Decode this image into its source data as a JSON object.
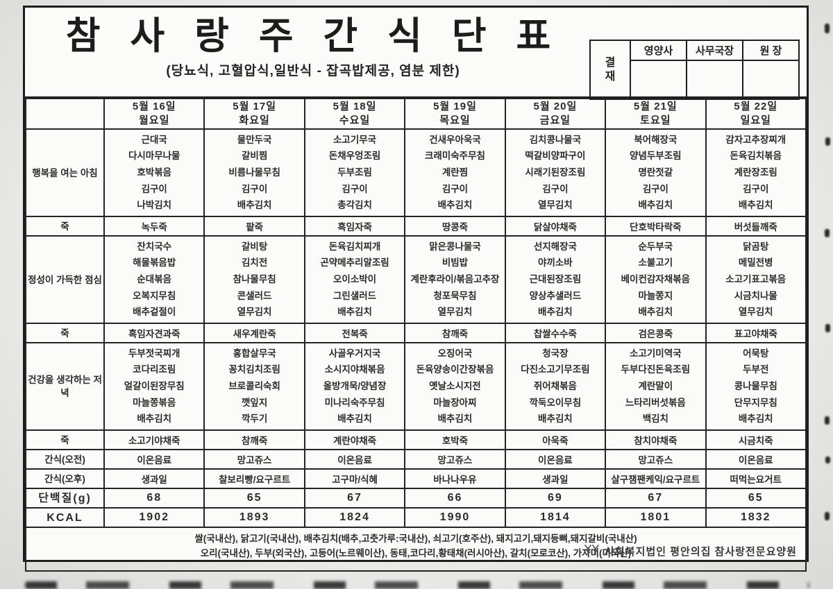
{
  "colors": {
    "ink": "#1e1e1e",
    "paper": "#fbfbf9",
    "scan_background": "#e3e3e1",
    "text": "#2b2b2b"
  },
  "header": {
    "title": "참 사 랑 주 간 식 단 표",
    "subtitle": "(당뇨식, 고혈압식,일반식 - 잡곡밥제공, 염분 제한)"
  },
  "approval": {
    "label": "결재",
    "roles": [
      "영양사",
      "사무국장",
      "원 장"
    ]
  },
  "days": [
    {
      "date": "5월 16일",
      "day": "월요일"
    },
    {
      "date": "5월 17일",
      "day": "화요일"
    },
    {
      "date": "5월 18일",
      "day": "수요일"
    },
    {
      "date": "5월 19일",
      "day": "목요일"
    },
    {
      "date": "5월 20일",
      "day": "금요일"
    },
    {
      "date": "5월 21일",
      "day": "토요일"
    },
    {
      "date": "5월 22일",
      "day": "일요일"
    }
  ],
  "menu": {
    "rows": [
      {
        "label": "행복을 여는 아침",
        "type": "meal",
        "cells": [
          [
            "근대국",
            "다시마무나물",
            "호박볶음",
            "김구이",
            "나박김치"
          ],
          [
            "물만두국",
            "갈비찜",
            "비름나물무침",
            "김구이",
            "배추김치"
          ],
          [
            "소고기무국",
            "돈채우엉조림",
            "두부조림",
            "김구이",
            "총각김치"
          ],
          [
            "건새우아욱국",
            "크래미숙주무침",
            "계란찜",
            "김구이",
            "배추김치"
          ],
          [
            "김치콩나물국",
            "떡갈비양파구이",
            "시래기된장조림",
            "김구이",
            "열무김치"
          ],
          [
            "북어해장국",
            "양념두부조림",
            "명란젓갈",
            "김구이",
            "배추김치"
          ],
          [
            "감자고추장찌개",
            "돈육김치볶음",
            "계란장조림",
            "김구이",
            "배추김치"
          ]
        ]
      },
      {
        "label": "죽",
        "type": "single",
        "cells": [
          "녹두죽",
          "팥죽",
          "흑임자죽",
          "땅콩죽",
          "닭살야채죽",
          "단호박타락죽",
          "버섯들깨죽"
        ]
      },
      {
        "label": "정성이 가득한 점심",
        "type": "meal",
        "cells": [
          [
            "잔치국수",
            "해물볶음밥",
            "순대볶음",
            "오복지무침",
            "배추겉절이"
          ],
          [
            "갈비탕",
            "김치전",
            "참나물무침",
            "콘샐러드",
            "열무김치"
          ],
          [
            "돈육김치찌개",
            "곤약메추리알조림",
            "오이소박이",
            "그린샐러드",
            "배추김치"
          ],
          [
            "맑은콩나물국",
            "비빔밥",
            "계란후라이/볶음고추장",
            "청포묵무침",
            "열무김치"
          ],
          [
            "선지해장국",
            "야끼소바",
            "근대된장조림",
            "양상추샐러드",
            "배추김치"
          ],
          [
            "순두부국",
            "소불고기",
            "베이컨감자채볶음",
            "마늘쫑지",
            "배추김치"
          ],
          [
            "닭곰탕",
            "메밀전병",
            "소고기표고볶음",
            "시금치나물",
            "열무김치"
          ]
        ]
      },
      {
        "label": "죽",
        "type": "single",
        "cells": [
          "흑임자견과죽",
          "새우계란죽",
          "전복죽",
          "참깨죽",
          "찹쌀수수죽",
          "검은콩죽",
          "표고야채죽"
        ]
      },
      {
        "label": "건강을 생각하는 저녁",
        "type": "meal",
        "cells": [
          [
            "두부젓국찌개",
            "코다리조림",
            "얼갈이된장무침",
            "마늘쫑볶음",
            "배추김치"
          ],
          [
            "홍합살무국",
            "꽁치김치조림",
            "브로콜리숙회",
            "깻잎지",
            "깍두기"
          ],
          [
            "사골우거지국",
            "소시지야채볶음",
            "올방개묵/양념장",
            "미나리숙주무침",
            "배추김치"
          ],
          [
            "오징어국",
            "돈육양송이간장볶음",
            "옛날소시지전",
            "마늘장아찌",
            "배추김치"
          ],
          [
            "청국장",
            "다진소고기무조림",
            "쥐어채볶음",
            "깍둑오이무침",
            "배추김치"
          ],
          [
            "소고기미역국",
            "두부다진돈육조림",
            "계란말이",
            "느타리버섯볶음",
            "백김치"
          ],
          [
            "어묵탕",
            "두부전",
            "콩나물무침",
            "단무지무침",
            "배추김치"
          ]
        ]
      },
      {
        "label": "죽",
        "type": "single",
        "cells": [
          "소고기야채죽",
          "참깨죽",
          "계란야채죽",
          "호박죽",
          "아욱죽",
          "참치야채죽",
          "시금치죽"
        ]
      },
      {
        "label": "간식(오전)",
        "type": "single",
        "cells": [
          "이온음료",
          "망고쥬스",
          "이온음료",
          "망고쥬스",
          "이온음료",
          "망고쥬스",
          "이온음료"
        ]
      },
      {
        "label": "간식(오후)",
        "type": "single",
        "cells": [
          "생과일",
          "찰보리빵/요구르트",
          "고구마/식혜",
          "바나나우유",
          "생과일",
          "살구잼팬케익/요구르트",
          "떠먹는요거트"
        ]
      },
      {
        "label": "단백질(g)",
        "type": "number",
        "cells": [
          "68",
          "65",
          "67",
          "66",
          "69",
          "67",
          "65"
        ]
      },
      {
        "label": "KCAL",
        "type": "number",
        "cells": [
          "1902",
          "1893",
          "1824",
          "1990",
          "1814",
          "1801",
          "1832"
        ]
      }
    ]
  },
  "footer": {
    "origin_line1": "쌀(국내산), 닭고기(국내산), 배추김치(배추,고춧가루:국내산), 쇠고기(호주산), 돼지고기,돼지등뼈,돼지갈비(국내산)",
    "origin_line2": "오리(국내산), 두부(외국산), 고등어(노르웨이산), 동태,코다리,황태채(러시아산), 갈치(모로코산), 가자미(미국산)",
    "signature": "사회복지법인 평안의집 참사랑전문요양원",
    "logo_icon": "twin-trees-icon"
  }
}
